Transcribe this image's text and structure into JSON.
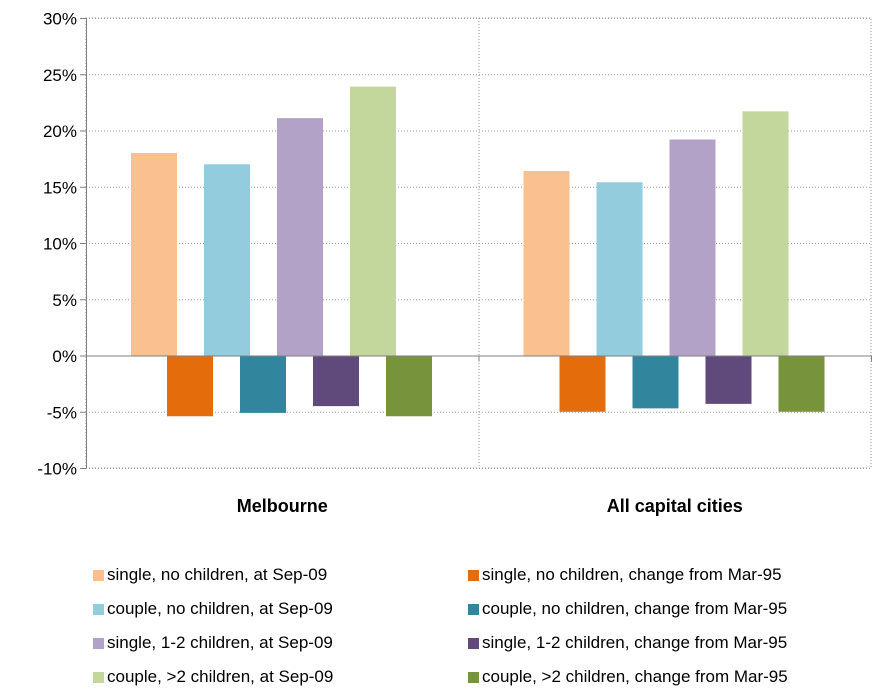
{
  "chart_data": {
    "type": "bar",
    "categories": [
      "Melbourne",
      "All capital cities"
    ],
    "series": [
      {
        "name": "single, no children,  at Sep-09",
        "color": "#FAC090",
        "values": [
          18.0,
          16.4
        ]
      },
      {
        "name": "single, no children,  change from Mar-95",
        "color": "#E46C0A",
        "values": [
          -5.4,
          -5.0
        ]
      },
      {
        "name": "couple, no children,  at Sep-09",
        "color": "#93CDDD",
        "values": [
          17.0,
          15.4
        ]
      },
      {
        "name": "couple, no children,  change from Mar-95",
        "color": "#31859C",
        "values": [
          -5.1,
          -4.7
        ]
      },
      {
        "name": "single, 1-2 children,  at Sep-09",
        "color": "#B3A2C7",
        "values": [
          21.1,
          19.2
        ]
      },
      {
        "name": "single, 1-2 children,  change from Mar-95",
        "color": "#604A7B",
        "values": [
          -4.5,
          -4.3
        ]
      },
      {
        "name": "couple, >2 children,  at Sep-09",
        "color": "#C3D69B",
        "values": [
          23.9,
          21.7
        ]
      },
      {
        "name": "couple, >2 children,  change from Mar-95",
        "color": "#77933C",
        "values": [
          -5.4,
          -5.0
        ]
      }
    ],
    "yticks": [
      "30%",
      "25%",
      "20%",
      "15%",
      "10%",
      "5%",
      "0%",
      "-5%",
      "-10%"
    ],
    "ylim": [
      -10,
      30
    ],
    "grid": true,
    "legend_position": "bottom",
    "title": "",
    "xlabel": "",
    "ylabel": ""
  }
}
